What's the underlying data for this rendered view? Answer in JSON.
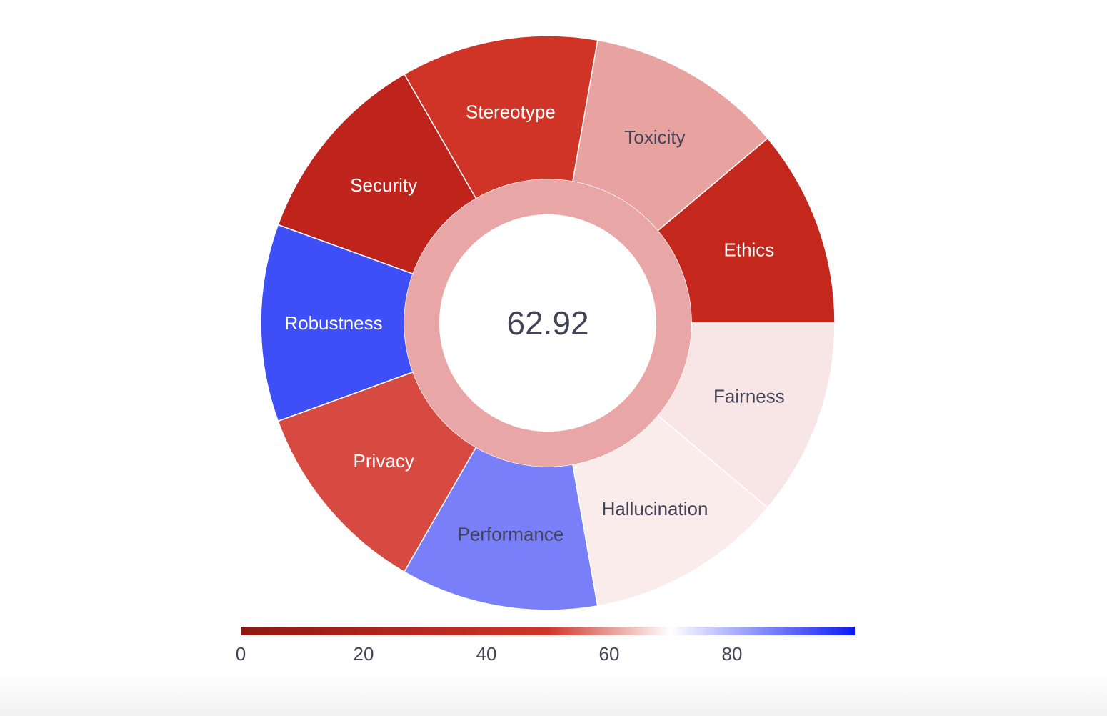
{
  "chart_data": {
    "type": "sunburst",
    "center": {
      "value": "62.92",
      "color": "#e8a6a6"
    },
    "segments": [
      {
        "label": "Ethics",
        "color": "#c4271c",
        "text_color": "#ffffff"
      },
      {
        "label": "Toxicity",
        "color": "#e8a2a0",
        "text_color": "#444459"
      },
      {
        "label": "Stereotype",
        "color": "#d03427",
        "text_color": "#ffffff"
      },
      {
        "label": "Security",
        "color": "#be231c",
        "text_color": "#ffffff"
      },
      {
        "label": "Robustness",
        "color": "#3f4ff7",
        "text_color": "#ffffff"
      },
      {
        "label": "Privacy",
        "color": "#d64a42",
        "text_color": "#ffffff"
      },
      {
        "label": "Performance",
        "color": "#787ff8",
        "text_color": "#444459"
      },
      {
        "label": "Hallucination",
        "color": "#faeceb",
        "text_color": "#444459"
      },
      {
        "label": "Fairness",
        "color": "#f8e6e6",
        "text_color": "#444459"
      }
    ],
    "colorbar": {
      "range": [
        0,
        100
      ],
      "ticks": [
        0,
        20,
        40,
        60,
        80
      ],
      "tick_labels": [
        "0",
        "20",
        "40",
        "60",
        "80"
      ],
      "colorscale": [
        "#8e1811",
        "#d03427",
        "#ffffff",
        "#0a18f5"
      ]
    }
  }
}
